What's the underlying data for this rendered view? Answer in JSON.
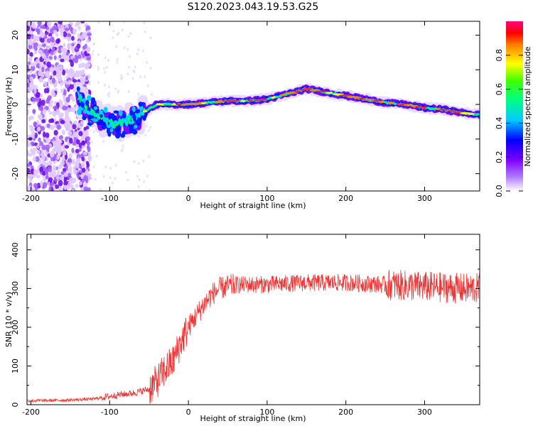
{
  "figure_title": "S120.2023.043.19.53.G25",
  "chart_data": [
    {
      "type": "heatmap",
      "title": "",
      "xlabel": "Height of straight line (km)",
      "ylabel": "Frequency (Hz)",
      "xlim": [
        -205,
        370
      ],
      "ylim": [
        -25,
        24
      ],
      "xticks": [
        -200,
        -100,
        0,
        100,
        200,
        300
      ],
      "yticks": [
        -20,
        -10,
        0,
        10,
        20
      ],
      "colorbar": {
        "label": "Normalized spectral amplitude",
        "range": [
          0,
          1
        ],
        "ticks": [
          "0.0",
          "0.2",
          "0.4",
          "0.6",
          "0.8"
        ],
        "colors": [
          "#ffffff",
          "#8000ff",
          "#0000ff",
          "#00ffff",
          "#00ff00",
          "#ffff00",
          "#ff0000",
          "#ff00a0"
        ]
      },
      "ridge": {
        "description_points_x": [
          -140,
          -125,
          -110,
          -95,
          -80,
          -65,
          -55,
          -40,
          -20,
          0,
          25,
          50,
          75,
          100,
          125,
          150,
          175,
          200,
          225,
          250,
          275,
          300,
          325,
          350,
          370
        ],
        "frequency_hz": [
          2,
          -2,
          -4,
          -6,
          -5,
          -4,
          -2,
          0,
          0,
          0,
          0.5,
          1,
          1,
          1.5,
          3,
          4.5,
          3.5,
          2.5,
          1.5,
          0.5,
          0,
          -1,
          -1.5,
          -2.5,
          -3
        ]
      }
    },
    {
      "type": "line",
      "title": "",
      "xlabel": "Height of straight line (km)",
      "ylabel": "SNR (10 * v/v)",
      "xlim": [
        -205,
        370
      ],
      "ylim": [
        0,
        440
      ],
      "xticks": [
        -200,
        -100,
        0,
        100,
        200,
        300
      ],
      "yticks": [
        0,
        100,
        200,
        300,
        400
      ],
      "series": [
        {
          "color": "#ee3333",
          "trend_x": [
            -205,
            -150,
            -120,
            -90,
            -70,
            -50,
            -40,
            -30,
            -20,
            -10,
            0,
            10,
            20,
            30,
            40,
            60,
            80,
            100,
            150,
            200,
            250,
            300,
            350,
            370
          ],
          "trend_y": [
            10,
            12,
            15,
            25,
            30,
            40,
            60,
            90,
            110,
            160,
            200,
            230,
            260,
            285,
            300,
            310,
            310,
            310,
            315,
            315,
            310,
            305,
            300,
            300
          ]
        }
      ]
    }
  ]
}
